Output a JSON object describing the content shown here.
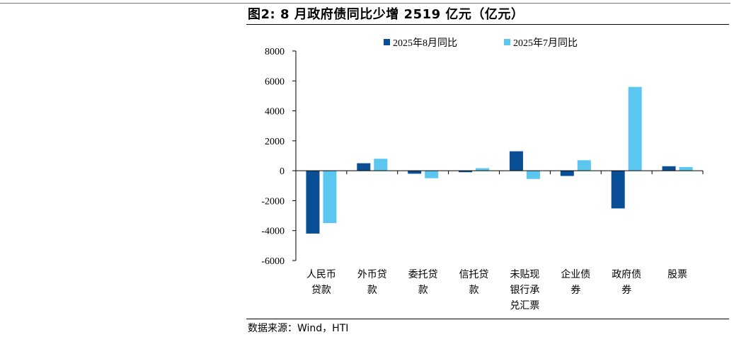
{
  "title": "图2:  8 月政府债同比少增 2519 亿元（亿元）",
  "source": "数据来源：Wind，HTI",
  "colors": {
    "aug": "#0a4f96",
    "jul": "#5bc6f0"
  },
  "chart_data": {
    "type": "bar",
    "title": "图2:  8 月政府债同比少增 2519 亿元（亿元）",
    "xlabel": "",
    "ylabel": "",
    "ylim": [
      -6000,
      8000
    ],
    "yticks": [
      8000,
      6000,
      4000,
      2000,
      0,
      -2000,
      -4000,
      -6000
    ],
    "grid": false,
    "legend": "top-center",
    "categories": [
      [
        "人民币",
        "贷款"
      ],
      [
        "外币贷",
        "款"
      ],
      [
        "委托贷",
        "款"
      ],
      [
        "信托贷",
        "款"
      ],
      [
        "未贴现",
        "银行承",
        "兑汇票"
      ],
      [
        "企业债",
        "券"
      ],
      [
        "政府债",
        "券"
      ],
      [
        "股票"
      ]
    ],
    "series": [
      {
        "name": "2025年8月同比",
        "values": [
          -4200,
          500,
          -200,
          -100,
          1300,
          -350,
          -2519,
          300
        ]
      },
      {
        "name": "2025年7月同比",
        "values": [
          -3500,
          800,
          -500,
          170,
          -550,
          700,
          5600,
          250
        ]
      }
    ]
  }
}
